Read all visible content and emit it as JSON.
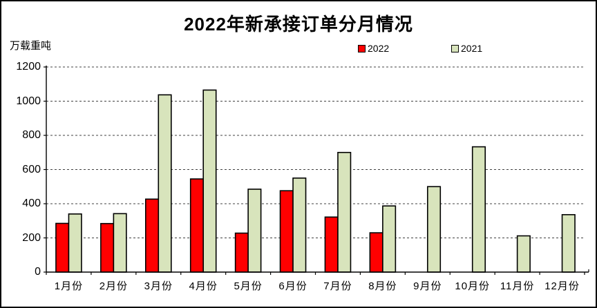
{
  "title": "2022年新承接订单分月情况",
  "unit_label": "万载重吨",
  "legend": {
    "items": [
      {
        "label": "2022",
        "color": "#ff0000"
      },
      {
        "label": "2021",
        "color": "#d8e4bc"
      }
    ]
  },
  "colors": {
    "series_2022": "#ff0000",
    "series_2021": "#d8e4bc",
    "bar_border": "#000000",
    "axis": "#000000",
    "gridline": "#404040",
    "background": "#ffffff"
  },
  "chart_data": {
    "type": "bar",
    "title": "2022年新承接订单分月情况",
    "xlabel": "",
    "ylabel": "万载重吨",
    "categories": [
      "1月份",
      "2月份",
      "3月份",
      "4月份",
      "5月份",
      "6月份",
      "7月份",
      "8月份",
      "9月份",
      "10月份",
      "11月份",
      "12月份"
    ],
    "series": [
      {
        "name": "2022",
        "color": "#ff0000",
        "values": [
          285,
          284,
          427,
          545,
          228,
          476,
          322,
          230,
          0,
          0,
          0,
          0
        ]
      },
      {
        "name": "2021",
        "color": "#d8e4bc",
        "values": [
          340,
          342,
          1037,
          1065,
          485,
          550,
          700,
          387,
          500,
          733,
          212,
          336
        ]
      }
    ],
    "ylim": [
      0,
      1200
    ],
    "yticks": [
      1200,
      1000,
      800,
      600,
      400,
      200,
      0
    ],
    "grid": "horizontal-dashed",
    "legend_position": "top"
  }
}
